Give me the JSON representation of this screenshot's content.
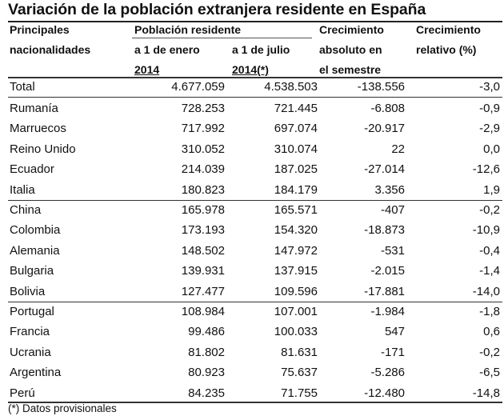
{
  "title": "Variación de la población extranjera residente en España",
  "headers": {
    "col1_line1": "Principales",
    "col1_line2": "nacionalidades",
    "group": "Población residente",
    "sub1_line1": "a 1 de enero",
    "sub1_line2": "2014",
    "sub2_line1": "a 1 de julio",
    "sub2_line2": "2014(*)",
    "col4_line1": "Crecimiento",
    "col4_line2": "absoluto en",
    "col4_line3": "el semestre",
    "col5_line1": "Crecimiento",
    "col5_line2": "relativo (%)"
  },
  "rows": [
    {
      "name": "Total",
      "enero": "4.677.059",
      "julio": "4.538.503",
      "abs": "-138.556",
      "rel": "-3,0"
    },
    {
      "name": "Rumanía",
      "enero": "728.253",
      "julio": "721.445",
      "abs": "-6.808",
      "rel": "-0,9"
    },
    {
      "name": "Marruecos",
      "enero": "717.992",
      "julio": "697.074",
      "abs": "-20.917",
      "rel": "-2,9"
    },
    {
      "name": "Reino Unido",
      "enero": "310.052",
      "julio": "310.074",
      "abs": "22",
      "rel": "0,0"
    },
    {
      "name": "Ecuador",
      "enero": "214.039",
      "julio": "187.025",
      "abs": "-27.014",
      "rel": "-12,6"
    },
    {
      "name": "Italia",
      "enero": "180.823",
      "julio": "184.179",
      "abs": "3.356",
      "rel": "1,9"
    },
    {
      "name": "China",
      "enero": "165.978",
      "julio": "165.571",
      "abs": "-407",
      "rel": "-0,2"
    },
    {
      "name": "Colombia",
      "enero": "173.193",
      "julio": "154.320",
      "abs": "-18.873",
      "rel": "-10,9"
    },
    {
      "name": "Alemania",
      "enero": "148.502",
      "julio": "147.972",
      "abs": "-531",
      "rel": "-0,4"
    },
    {
      "name": "Bulgaria",
      "enero": "139.931",
      "julio": "137.915",
      "abs": "-2.015",
      "rel": "-1,4"
    },
    {
      "name": "Bolivia",
      "enero": "127.477",
      "julio": "109.596",
      "abs": "-17.881",
      "rel": "-14,0"
    },
    {
      "name": "Portugal",
      "enero": "108.984",
      "julio": "107.001",
      "abs": "-1.984",
      "rel": "-1,8"
    },
    {
      "name": "Francia",
      "enero": "99.486",
      "julio": "100.033",
      "abs": "547",
      "rel": "0,6"
    },
    {
      "name": "Ucrania",
      "enero": "81.802",
      "julio": "81.631",
      "abs": "-171",
      "rel": "-0,2"
    },
    {
      "name": "Argentina",
      "enero": "80.923",
      "julio": "75.637",
      "abs": "-5.286",
      "rel": "-6,5"
    },
    {
      "name": "Perú",
      "enero": "84.235",
      "julio": "71.755",
      "abs": "-12.480",
      "rel": "-14,8"
    }
  ],
  "footnote": "(*) Datos provisionales"
}
